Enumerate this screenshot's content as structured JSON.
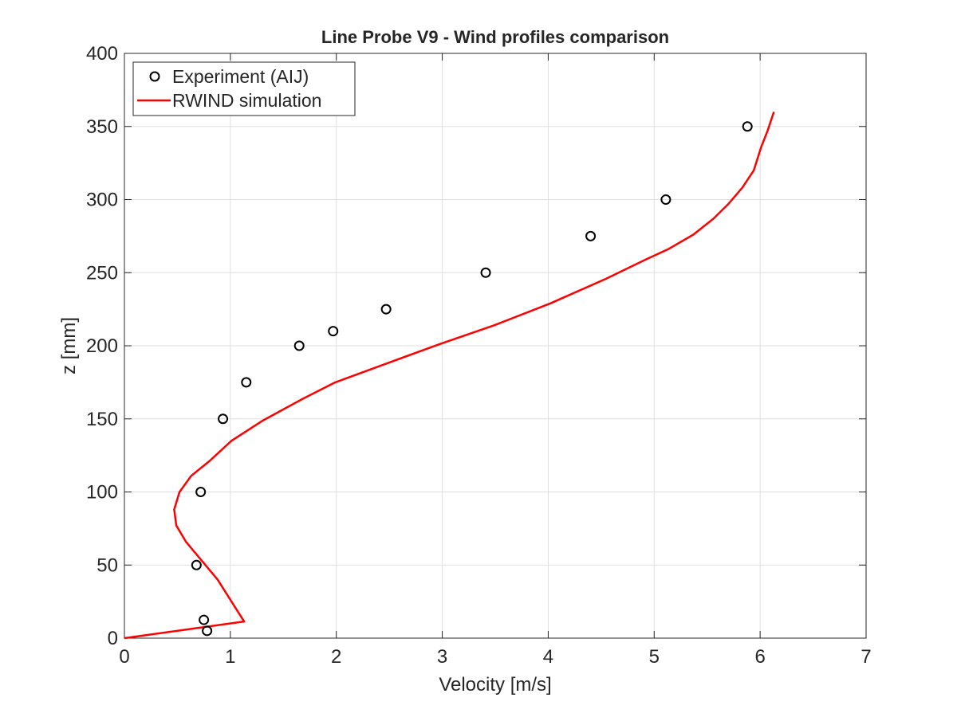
{
  "chart_data": {
    "type": "scatter+line",
    "title": "Line Probe V9 - Wind profiles comparison",
    "xlabel": "Velocity [m/s]",
    "ylabel": "z [mm]",
    "xlim": [
      0,
      7
    ],
    "ylim": [
      0,
      400
    ],
    "xticks": [
      0,
      1,
      2,
      3,
      4,
      5,
      6,
      7
    ],
    "yticks": [
      0,
      50,
      100,
      150,
      200,
      250,
      300,
      350,
      400
    ],
    "grid": true,
    "legend_position": "top-left",
    "series": [
      {
        "name": "Experiment (AIJ)",
        "kind": "markers",
        "marker": "open-circle",
        "color": "#000000",
        "x": [
          0.78,
          0.75,
          0.68,
          0.72,
          0.93,
          1.15,
          1.65,
          1.97,
          2.47,
          3.41,
          4.4,
          5.11,
          5.88
        ],
        "y": [
          5,
          12.5,
          50,
          100,
          150,
          175,
          200,
          210,
          225,
          250,
          275,
          300,
          350
        ]
      },
      {
        "name": "RWIND simulation",
        "kind": "line",
        "color": "#ff0000",
        "x": [
          0,
          1.13,
          0.88,
          0.58,
          0.49,
          0.47,
          0.52,
          0.63,
          0.8,
          1.01,
          1.31,
          1.69,
          1.99,
          2.44,
          2.97,
          3.49,
          4.02,
          4.55,
          4.92,
          5.13,
          5.37,
          5.56,
          5.7,
          5.83,
          5.94,
          6.01,
          6.07,
          6.13
        ],
        "y": [
          0,
          11.4,
          40,
          66,
          77,
          88,
          100,
          111,
          121,
          135,
          149,
          164,
          175,
          187,
          201,
          214,
          229,
          246,
          259,
          266,
          276,
          287,
          297,
          308,
          320,
          336,
          347,
          360
        ]
      }
    ]
  }
}
